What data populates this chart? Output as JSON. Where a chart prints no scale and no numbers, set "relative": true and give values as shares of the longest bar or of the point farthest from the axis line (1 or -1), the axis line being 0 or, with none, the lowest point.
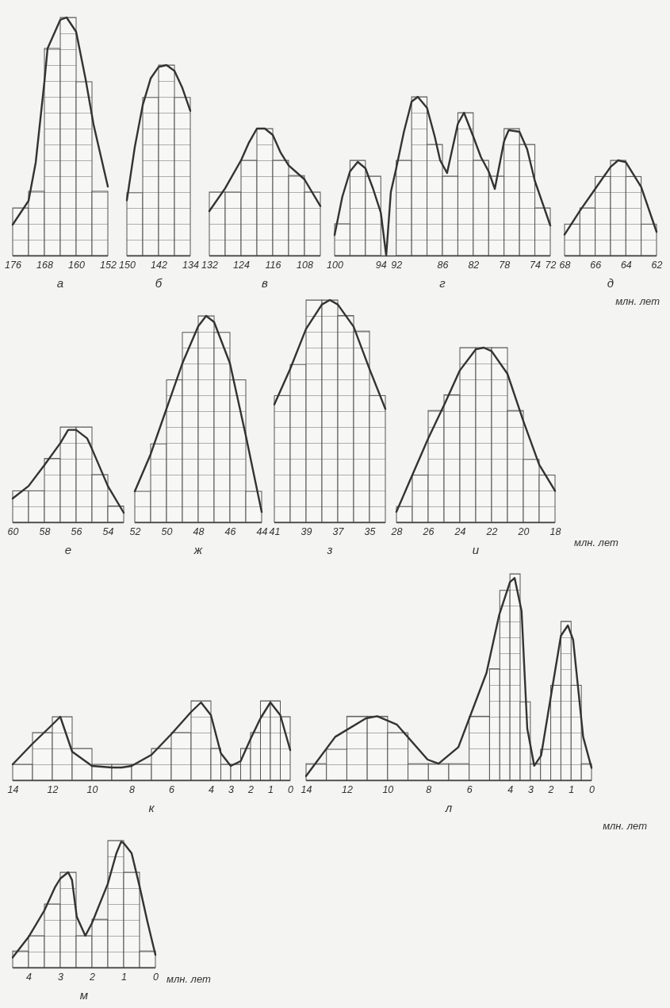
{
  "chart_data": [
    {
      "type": "histogram",
      "relative": true,
      "xlabel": "а",
      "bins": [
        176,
        172,
        168,
        164,
        160,
        156,
        152
      ],
      "values": [
        0.2,
        0.27,
        0.87,
        1,
        0.73,
        0.27
      ],
      "xlim": [
        176,
        152
      ],
      "xticks": [
        176,
        168,
        160,
        152
      ],
      "series": [
        {
          "type": "line",
          "color": "#333333",
          "x": [
            176,
            172,
            170.2,
            168,
            167.2,
            164,
            162.4,
            160,
            157.6,
            155.6,
            152
          ],
          "values": [
            0.13,
            0.23,
            0.39,
            0.73,
            0.87,
            0.99,
            1,
            0.94,
            0.74,
            0.55,
            0.29
          ]
        }
      ]
    },
    {
      "type": "histogram",
      "relative": true,
      "xlabel": "б",
      "bins": [
        150,
        146,
        142,
        138,
        134
      ],
      "values": [
        0.33,
        0.83,
        1,
        0.83
      ],
      "xlim": [
        150,
        134
      ],
      "xticks": [
        150,
        142,
        134
      ],
      "series": [
        {
          "type": "line",
          "color": "#333333",
          "x": [
            150,
            148,
            146,
            144,
            142,
            140,
            138,
            136,
            134
          ],
          "values": [
            0.29,
            0.57,
            0.79,
            0.93,
            0.99,
            1,
            0.97,
            0.88,
            0.76
          ]
        }
      ]
    },
    {
      "type": "histogram",
      "relative": true,
      "xlabel": "в",
      "bins": [
        132,
        128,
        124,
        120,
        116,
        112,
        108,
        104
      ],
      "values": [
        0.5,
        0.5,
        0.75,
        1,
        0.75,
        0.63,
        0.5
      ],
      "xlim": [
        132,
        104
      ],
      "xticks": [
        132,
        124,
        116,
        108
      ],
      "series": [
        {
          "type": "line",
          "color": "#333333",
          "x": [
            132,
            128,
            124,
            122,
            120,
            118,
            116,
            114,
            112,
            108,
            104
          ],
          "values": [
            0.35,
            0.53,
            0.75,
            0.89,
            1,
            1,
            0.95,
            0.81,
            0.71,
            0.6,
            0.39
          ]
        }
      ]
    },
    {
      "type": "histogram",
      "relative": true,
      "xlabel": "г",
      "bins": [
        100,
        98,
        96,
        94,
        92,
        90,
        88,
        86,
        84,
        82,
        80,
        78,
        76,
        74,
        72
      ],
      "values": [
        0.2,
        0.6,
        0.5,
        0,
        0.6,
        1,
        0.7,
        0.5,
        0.9,
        0.6,
        0.5,
        0.8,
        0.7,
        0.3
      ],
      "xlim": [
        100,
        72
      ],
      "xticks": [
        100,
        94,
        92,
        86,
        82,
        78,
        74,
        72
      ],
      "series": [
        {
          "type": "line",
          "color": "#333333",
          "x": [
            100,
            99,
            98,
            97,
            96,
            95,
            94,
            93.3,
            92.7,
            92,
            91,
            90,
            89.2,
            88,
            87,
            86.3,
            85.4,
            84,
            83.2,
            82,
            81,
            80,
            79.2,
            78,
            77.4,
            76,
            75,
            74,
            72
          ],
          "values": [
            0.13,
            0.37,
            0.53,
            0.59,
            0.55,
            0.42,
            0.27,
            0,
            0.4,
            0.55,
            0.78,
            0.97,
            1,
            0.93,
            0.75,
            0.6,
            0.52,
            0.83,
            0.9,
            0.75,
            0.62,
            0.53,
            0.42,
            0.72,
            0.79,
            0.78,
            0.67,
            0.47,
            0.19
          ]
        }
      ]
    },
    {
      "type": "histogram",
      "relative": true,
      "xlabel": "д",
      "annotations": [
        "млн. лет"
      ],
      "bins": [
        68,
        67,
        66,
        65,
        64,
        63,
        62
      ],
      "values": [
        0.33,
        0.5,
        0.83,
        1,
        0.83,
        0.33
      ],
      "xlim": [
        68,
        62
      ],
      "xticks": [
        68,
        66,
        64,
        62
      ],
      "series": [
        {
          "type": "line",
          "color": "#333333",
          "x": [
            68,
            67,
            66,
            65,
            64.5,
            64,
            63,
            62
          ],
          "values": [
            0.22,
            0.47,
            0.7,
            0.93,
            1,
            0.98,
            0.72,
            0.25
          ]
        }
      ]
    },
    {
      "type": "histogram",
      "relative": true,
      "xlabel": "е",
      "bins": [
        60,
        59,
        58,
        57,
        56,
        55,
        54,
        53
      ],
      "values": [
        0.33,
        0.33,
        0.67,
        1,
        1,
        0.5,
        0.17
      ],
      "xlim": [
        60,
        53
      ],
      "xticks": [
        60,
        58,
        56,
        54
      ],
      "series": [
        {
          "type": "line",
          "color": "#333333",
          "x": [
            60,
            59,
            58,
            57,
            56.5,
            56,
            55.3,
            55,
            54,
            53
          ],
          "values": [
            0.25,
            0.38,
            0.6,
            0.83,
            0.97,
            0.97,
            0.88,
            0.77,
            0.38,
            0.1
          ]
        }
      ]
    },
    {
      "type": "histogram",
      "relative": true,
      "xlabel": "ж",
      "bins": [
        52,
        51,
        50,
        49,
        48,
        47,
        46,
        45,
        44
      ],
      "values": [
        0.15,
        0.38,
        0.69,
        0.92,
        1,
        0.92,
        0.69,
        0.15
      ],
      "xlim": [
        52,
        44
      ],
      "xticks": [
        52,
        50,
        48,
        46,
        44
      ],
      "series": [
        {
          "type": "line",
          "color": "#333333",
          "x": [
            52,
            51,
            50,
            49,
            48,
            47.5,
            47,
            46,
            45,
            44
          ],
          "values": [
            0.15,
            0.33,
            0.55,
            0.77,
            0.95,
            1,
            0.97,
            0.77,
            0.42,
            0.05
          ]
        }
      ]
    },
    {
      "type": "histogram",
      "relative": true,
      "xlabel": "з",
      "bins": [
        41,
        40,
        39,
        38,
        37,
        36,
        35,
        34
      ],
      "values": [
        0.57,
        0.71,
        1,
        1,
        0.93,
        0.86,
        0.57
      ],
      "xlim": [
        41,
        34
      ],
      "xticks": [
        41,
        39,
        37,
        35
      ],
      "series": [
        {
          "type": "line",
          "color": "#333333",
          "x": [
            41,
            40,
            39,
            38,
            37.5,
            37,
            36,
            35,
            34
          ],
          "values": [
            0.53,
            0.69,
            0.87,
            0.98,
            1,
            0.98,
            0.88,
            0.69,
            0.51
          ]
        }
      ]
    },
    {
      "type": "histogram",
      "relative": true,
      "xlabel": "и",
      "annotations": [
        "млн. лет"
      ],
      "bins": [
        28,
        27,
        26,
        25,
        24,
        23,
        22,
        21,
        20,
        19,
        18
      ],
      "values": [
        0.09,
        0.27,
        0.64,
        0.73,
        1,
        1,
        1,
        0.64,
        0.36,
        0.27
      ],
      "xlim": [
        28,
        18
      ],
      "xticks": [
        28,
        26,
        24,
        22,
        20,
        18
      ],
      "series": [
        {
          "type": "line",
          "color": "#333333",
          "x": [
            28,
            27,
            26,
            25,
            24,
            23,
            22.5,
            22,
            21,
            20,
            19,
            18
          ],
          "values": [
            0.06,
            0.27,
            0.48,
            0.67,
            0.87,
            0.99,
            1,
            0.98,
            0.85,
            0.58,
            0.33,
            0.18
          ]
        }
      ]
    },
    {
      "type": "histogram",
      "relative": true,
      "xlabel": "к",
      "bins": [
        14,
        13,
        12,
        11,
        10,
        9,
        8,
        7,
        6,
        5,
        4,
        3.5,
        3,
        2.5,
        2,
        1.5,
        1,
        0.5,
        0
      ],
      "values": [
        0.2,
        0.6,
        0.8,
        0.4,
        0.2,
        0.2,
        0.2,
        0.4,
        0.6,
        1,
        0.4,
        0.2,
        0.2,
        0.4,
        0.6,
        1,
        1,
        0.8
      ],
      "xlim": [
        14,
        0
      ],
      "xticks": [
        14,
        12,
        10,
        8,
        6,
        4,
        3,
        2,
        1,
        0
      ],
      "series": [
        {
          "type": "line",
          "color": "#333333",
          "x": [
            14,
            13,
            12,
            11.6,
            11,
            10,
            9,
            8.5,
            8,
            7,
            6,
            5,
            4.5,
            4,
            3.5,
            3,
            2.5,
            2,
            1.5,
            1,
            0.5,
            0
          ],
          "values": [
            0.2,
            0.46,
            0.7,
            0.8,
            0.36,
            0.18,
            0.16,
            0.16,
            0.18,
            0.32,
            0.58,
            0.86,
            0.98,
            0.82,
            0.34,
            0.18,
            0.24,
            0.52,
            0.78,
            0.98,
            0.82,
            0.38
          ]
        }
      ]
    },
    {
      "type": "histogram",
      "relative": true,
      "xlabel": "л",
      "annotations": [
        "млн. лет"
      ],
      "bins": [
        14,
        13,
        12,
        11,
        10,
        9,
        8,
        7,
        6,
        5,
        4.5,
        4,
        3.5,
        3,
        2.5,
        2,
        1.5,
        1,
        0.5,
        0
      ],
      "values": [
        0.08,
        0.15,
        0.31,
        0.31,
        0.23,
        0.08,
        0.08,
        0.08,
        0.31,
        0.54,
        0.92,
        1,
        0.38,
        0.08,
        0.15,
        0.46,
        0.77,
        0.46,
        0.08
      ],
      "xlim": [
        14,
        0
      ],
      "xticks": [
        14,
        12,
        10,
        8,
        6,
        4,
        3,
        2,
        1,
        0
      ],
      "series": [
        {
          "type": "line",
          "color": "#333333",
          "x": [
            14,
            12.57,
            11.06,
            10.51,
            9.55,
            8.04,
            7.5,
            6.53,
            5.15,
            4.53,
            4,
            3.77,
            3.43,
            3.15,
            2.81,
            2.47,
            1.92,
            1.5,
            1.16,
            0.9,
            0.41,
            0
          ],
          "values": [
            0.02,
            0.21,
            0.3,
            0.31,
            0.27,
            0.1,
            0.08,
            0.16,
            0.52,
            0.8,
            0.96,
            0.98,
            0.82,
            0.25,
            0.07,
            0.12,
            0.45,
            0.7,
            0.75,
            0.68,
            0.21,
            0.06
          ]
        }
      ]
    },
    {
      "type": "histogram",
      "relative": true,
      "xlabel": "м",
      "annotations": [
        "млн. лет"
      ],
      "bins": [
        4.5,
        4,
        3.5,
        3,
        2.5,
        2,
        1.5,
        1,
        0.5,
        0
      ],
      "values": [
        0.13,
        0.25,
        0.5,
        0.75,
        0.25,
        0.38,
        1,
        0.75,
        0.13
      ],
      "xlim": [
        4.5,
        0
      ],
      "xticks": [
        4,
        3,
        2,
        1,
        0
      ],
      "series": [
        {
          "type": "line",
          "color": "#333333",
          "x": [
            4.5,
            4,
            3.5,
            3.17,
            3,
            2.75,
            2.63,
            2.48,
            2.21,
            2,
            1.5,
            1.23,
            1.08,
            1,
            0.75,
            0.5,
            0.25,
            0
          ],
          "values": [
            0.08,
            0.24,
            0.45,
            0.63,
            0.7,
            0.75,
            0.69,
            0.4,
            0.25,
            0.35,
            0.66,
            0.9,
            0.99,
            0.98,
            0.9,
            0.64,
            0.36,
            0.1
          ]
        }
      ]
    }
  ]
}
